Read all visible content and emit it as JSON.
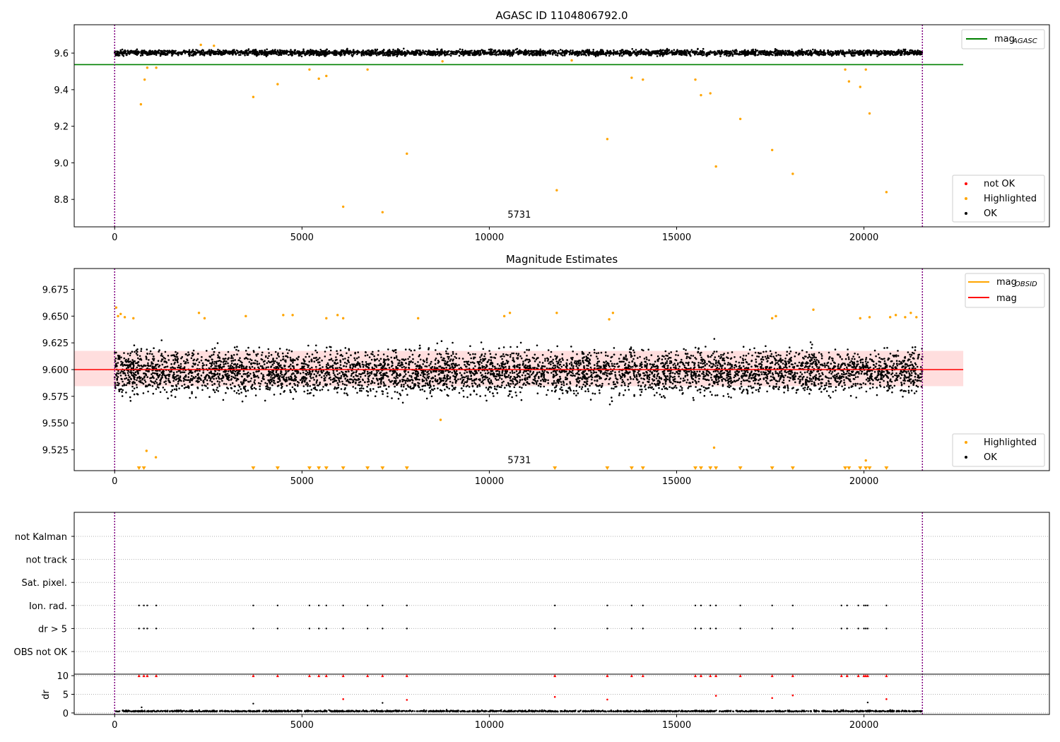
{
  "chart_data": [
    {
      "type": "scatter",
      "title": "AGASC ID 1104806792.0",
      "xlim": [
        -1080,
        24950
      ],
      "ylim": [
        8.65,
        9.755
      ],
      "x_ticks": [
        0,
        5000,
        10000,
        15000,
        20000
      ],
      "y_ticks": [
        8.8,
        9.0,
        9.2,
        9.4,
        9.6
      ],
      "grid": false,
      "vlines": [
        0,
        21560
      ],
      "hline": {
        "name": "mag_AGASC",
        "y": 9.537,
        "x_range": [
          -1080,
          22650
        ],
        "color": "#008000"
      },
      "annotation": {
        "text": "5731",
        "x": 10800,
        "y": 8.7
      },
      "ok_band": {
        "x_range": [
          0,
          21560
        ],
        "y_center": 9.602,
        "y_spread": 0.015,
        "count": 3200
      },
      "highlighted": {
        "x": [
          700,
          800,
          870,
          1110,
          2300,
          2650,
          3700,
          4350,
          5200,
          5450,
          5650,
          6100,
          6750,
          7150,
          7800,
          8750,
          11800,
          12200,
          13150,
          13800,
          14100,
          15500,
          15650,
          15900,
          16050,
          16700,
          17550,
          18100,
          19500,
          19600,
          19900,
          20050,
          20150,
          20600
        ],
        "y": [
          9.32,
          9.455,
          9.52,
          9.52,
          9.645,
          9.64,
          9.36,
          9.43,
          9.51,
          9.46,
          9.475,
          8.76,
          9.51,
          8.73,
          9.05,
          9.555,
          8.85,
          9.56,
          9.13,
          9.465,
          9.455,
          9.455,
          9.37,
          9.38,
          8.98,
          9.24,
          9.07,
          8.94,
          9.51,
          9.445,
          9.415,
          9.51,
          9.27,
          8.84
        ]
      },
      "legends": [
        {
          "position": "top-right",
          "entries": [
            {
              "label": "mag",
              "sub": "AGASC",
              "kind": "line",
              "color": "#008000"
            }
          ]
        },
        {
          "position": "bottom-right",
          "entries": [
            {
              "label": "not OK",
              "kind": "dot",
              "color": "#ff0000"
            },
            {
              "label": "Highlighted",
              "kind": "dot",
              "color": "#ffa500"
            },
            {
              "label": "OK",
              "kind": "dot",
              "color": "#000000"
            }
          ]
        }
      ]
    },
    {
      "type": "scatter",
      "title": "Magnitude Estimates",
      "xlim": [
        -1080,
        24950
      ],
      "ylim": [
        9.5055,
        9.6945
      ],
      "x_ticks": [
        0,
        5000,
        10000,
        15000,
        20000
      ],
      "y_ticks": [
        9.525,
        9.55,
        9.575,
        9.6,
        9.625,
        9.65,
        9.675
      ],
      "grid": false,
      "vlines": [
        0,
        21560
      ],
      "hline": {
        "name": "mag",
        "y": 9.6,
        "x_range": [
          -1080,
          22650
        ],
        "color": "#ff0000"
      },
      "band": {
        "y_range": [
          9.5845,
          9.6175
        ],
        "x_range": [
          -1080,
          22650
        ],
        "color": "#ffd6d6"
      },
      "annotation": {
        "text": "5731",
        "x": 10800,
        "y": 9.5125
      },
      "ok_band": {
        "x_range": [
          0,
          21560
        ],
        "y_center": 9.598,
        "y_spread": 0.02,
        "count": 5200
      },
      "highlighted": {
        "x": [
          40,
          90,
          160,
          270,
          500,
          850,
          1100,
          2250,
          2400,
          3500,
          4500,
          4750,
          5650,
          5950,
          6100,
          8100,
          8700,
          10400,
          10550,
          11800,
          13200,
          13300,
          16000,
          17550,
          17650,
          18650,
          19900,
          20050,
          20150,
          20700,
          20850,
          21100,
          21250,
          21400
        ],
        "y": [
          9.658,
          9.65,
          9.652,
          9.649,
          9.648,
          9.524,
          9.518,
          9.653,
          9.648,
          9.65,
          9.651,
          9.651,
          9.648,
          9.651,
          9.648,
          9.648,
          9.553,
          9.65,
          9.653,
          9.653,
          9.647,
          9.653,
          9.527,
          9.648,
          9.65,
          9.656,
          9.648,
          9.515,
          9.649,
          9.649,
          9.651,
          9.649,
          9.653,
          9.649
        ]
      },
      "out_of_range_markers_x": [
        650,
        780,
        3700,
        4350,
        5200,
        5450,
        5650,
        6100,
        6750,
        7150,
        7800,
        11750,
        13150,
        13800,
        14100,
        15500,
        15650,
        15900,
        16050,
        16700,
        17550,
        18100,
        19500,
        19600,
        19900,
        20050,
        20150,
        20600
      ],
      "legends": [
        {
          "position": "top-right",
          "entries": [
            {
              "label": "mag",
              "sub": "OBSID",
              "kind": "line",
              "color": "#ffa500"
            },
            {
              "label": "mag",
              "kind": "line",
              "color": "#ff0000"
            }
          ]
        },
        {
          "position": "bottom-right",
          "entries": [
            {
              "label": "Highlighted",
              "kind": "dot",
              "color": "#ffa500"
            },
            {
              "label": "OK",
              "kind": "dot",
              "color": "#000000"
            }
          ]
        }
      ]
    },
    {
      "type": "scatter",
      "xlim": [
        -1080,
        24950
      ],
      "x_ticks": [
        0,
        5000,
        10000,
        15000,
        20000
      ],
      "vlines": [
        0,
        21560
      ],
      "flag_rows": [
        "not Kalman",
        "not track",
        "Sat. pixel.",
        "Ion. rad.",
        "dr > 5",
        "OBS not OK"
      ],
      "flag_points": {
        "Ion. rad.": [
          650,
          780,
          870,
          1110,
          3700,
          4350,
          5200,
          5450,
          5650,
          6100,
          6750,
          7150,
          7800,
          11750,
          13150,
          13800,
          14100,
          15500,
          15650,
          15900,
          16050,
          16700,
          17550,
          18100,
          19400,
          19550,
          19850,
          20000,
          20050,
          20100,
          20600
        ],
        "dr > 5": [
          650,
          780,
          870,
          1110,
          3700,
          4350,
          5200,
          5450,
          5650,
          6100,
          6750,
          7150,
          7800,
          11750,
          13150,
          13800,
          14100,
          15500,
          15650,
          15900,
          16050,
          16700,
          17550,
          18100,
          19400,
          19550,
          19850,
          20000,
          20050,
          20100,
          20600
        ]
      },
      "dr": {
        "ylabel": "dr",
        "ylim": [
          -0.4,
          10.4
        ],
        "y_ticks": [
          0,
          5,
          10
        ],
        "clipped_x": [
          650,
          780,
          870,
          1110,
          3700,
          4350,
          5200,
          5450,
          5650,
          6100,
          6750,
          7150,
          7800,
          11750,
          13150,
          13800,
          14100,
          15500,
          15650,
          15900,
          16050,
          16700,
          17550,
          18100,
          19400,
          19550,
          19850,
          20000,
          20050,
          20100,
          20600
        ],
        "red_points": {
          "x": [
            6100,
            7800,
            11750,
            13150,
            16050,
            17550,
            18100,
            20600
          ],
          "y": [
            3.7,
            3.5,
            4.3,
            3.6,
            4.6,
            4.0,
            4.7,
            3.7
          ]
        },
        "black_points": {
          "x": [
            720,
            3700,
            7150,
            20100
          ],
          "y": [
            1.5,
            2.5,
            2.7,
            2.8
          ]
        },
        "baseline": {
          "x_range": [
            0,
            21560
          ],
          "y_center": 0.35,
          "count": 1800
        }
      }
    }
  ]
}
